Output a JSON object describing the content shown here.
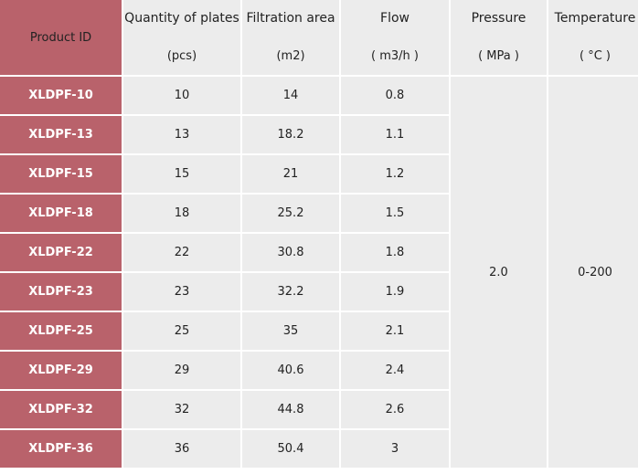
{
  "columns": {
    "product_id": "Product ID",
    "qty_title": "Quantity of plates",
    "qty_unit": "(pcs)",
    "area_title": "Filtration area",
    "area_unit": "(m2)",
    "flow_title": "Flow",
    "flow_unit": "( m3/h )",
    "pressure_title": "Pressure",
    "pressure_unit": "( MPa )",
    "temp_title": "Temperature",
    "temp_unit": "( °C )"
  },
  "rows": [
    {
      "id": "XLDPF-10",
      "qty": "10",
      "area": "14",
      "flow": "0.8"
    },
    {
      "id": "XLDPF-13",
      "qty": "13",
      "area": "18.2",
      "flow": "1.1"
    },
    {
      "id": "XLDPF-15",
      "qty": "15",
      "area": "21",
      "flow": "1.2"
    },
    {
      "id": "XLDPF-18",
      "qty": "18",
      "area": "25.2",
      "flow": "1.5"
    },
    {
      "id": "XLDPF-22",
      "qty": "22",
      "area": "30.8",
      "flow": "1.8"
    },
    {
      "id": "XLDPF-23",
      "qty": "23",
      "area": "32.2",
      "flow": "1.9"
    },
    {
      "id": "XLDPF-25",
      "qty": "25",
      "area": "35",
      "flow": "2.1"
    },
    {
      "id": "XLDPF-29",
      "qty": "29",
      "area": "40.6",
      "flow": "2.4"
    },
    {
      "id": "XLDPF-32",
      "qty": "32",
      "area": "44.8",
      "flow": "2.6"
    },
    {
      "id": "XLDPF-36",
      "qty": "36",
      "area": "50.4",
      "flow": "3"
    }
  ],
  "pressure_value": "2.0",
  "temperature_value": "0-200",
  "colors": {
    "product_id_fill": "#b9626b",
    "cell_fill": "#ececec",
    "product_id_text": "#ffffff"
  }
}
